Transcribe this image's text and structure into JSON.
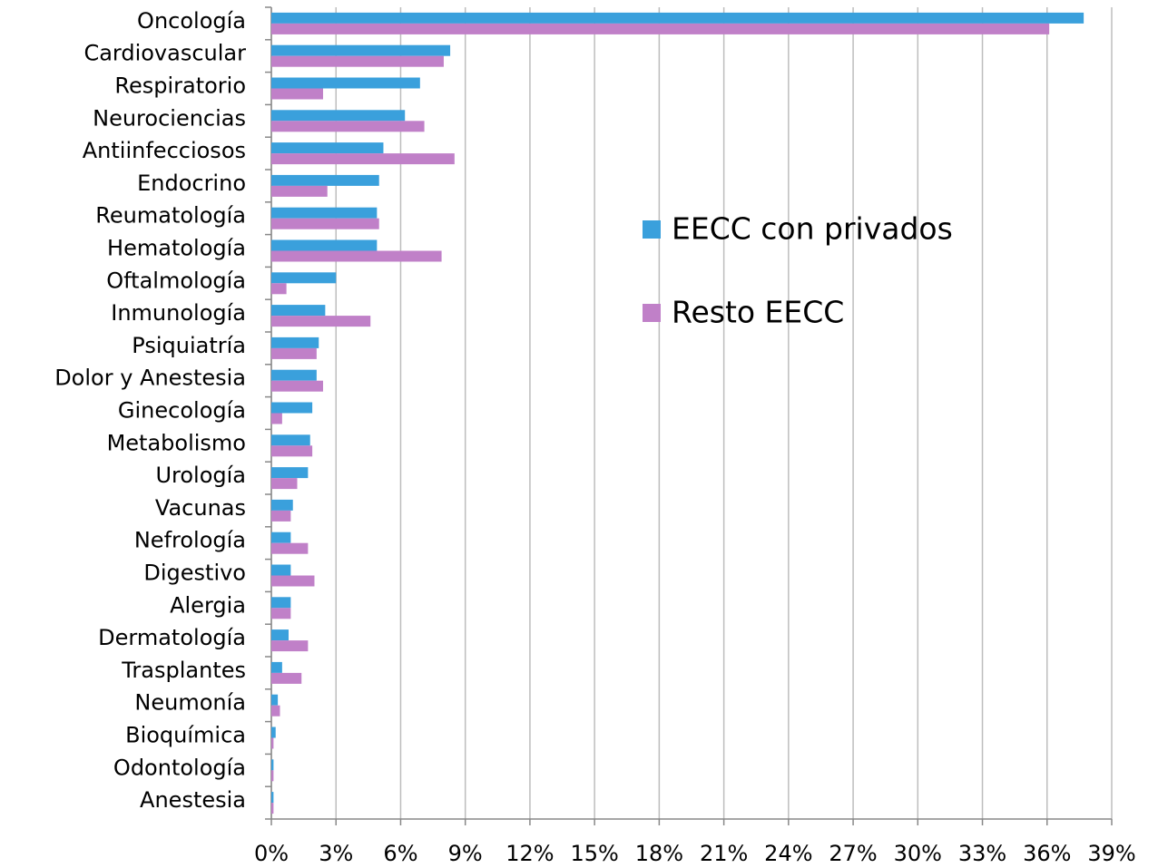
{
  "chart_data": {
    "type": "barh",
    "categories": [
      "Oncología",
      "Cardiovascular",
      "Respiratorio",
      "Neurociencias",
      "Antiinfecciosos",
      "Endocrino",
      "Reumatología",
      "Hematología",
      "Oftalmología",
      "Inmunología",
      "Psiquiatría",
      "Dolor y Anestesia",
      "Ginecología",
      "Metabolismo",
      "Urología",
      "Vacunas",
      "Nefrología",
      "Digestivo",
      "Alergia",
      "Dermatología",
      "Trasplantes",
      "Neumonía",
      "Bioquímica",
      "Odontología",
      "Anestesia"
    ],
    "series": [
      {
        "name": "EECC con privados",
        "color": "#3aa0dc",
        "values": [
          37.7,
          8.3,
          6.9,
          6.2,
          5.2,
          5.0,
          4.9,
          4.9,
          3.0,
          2.5,
          2.2,
          2.1,
          1.9,
          1.8,
          1.7,
          1.0,
          0.9,
          0.9,
          0.9,
          0.8,
          0.5,
          0.3,
          0.2,
          0.1,
          0.1
        ]
      },
      {
        "name": "Resto EECC",
        "color": "#c080c8",
        "values": [
          36.1,
          8.0,
          2.4,
          7.1,
          8.5,
          2.6,
          5.0,
          7.9,
          0.7,
          4.6,
          2.1,
          2.4,
          0.5,
          1.9,
          1.2,
          0.9,
          1.7,
          2.0,
          0.9,
          1.7,
          1.4,
          0.4,
          0.1,
          0.1,
          0.1
        ]
      }
    ],
    "xlim": [
      0,
      39
    ],
    "xticks": [
      {
        "value": 0,
        "label": "0%"
      },
      {
        "value": 3,
        "label": "3%"
      },
      {
        "value": 6,
        "label": "6%"
      },
      {
        "value": 9,
        "label": "9%"
      },
      {
        "value": 12,
        "label": "12%"
      },
      {
        "value": 15,
        "label": "15%"
      },
      {
        "value": 18,
        "label": "18%"
      },
      {
        "value": 21,
        "label": "21%"
      },
      {
        "value": 24,
        "label": "24%"
      },
      {
        "value": 27,
        "label": "27%"
      },
      {
        "value": 30,
        "label": "30%"
      },
      {
        "value": 33,
        "label": "33%"
      },
      {
        "value": 36,
        "label": "36%"
      },
      {
        "value": 39,
        "label": "39%"
      }
    ],
    "grid": true
  }
}
